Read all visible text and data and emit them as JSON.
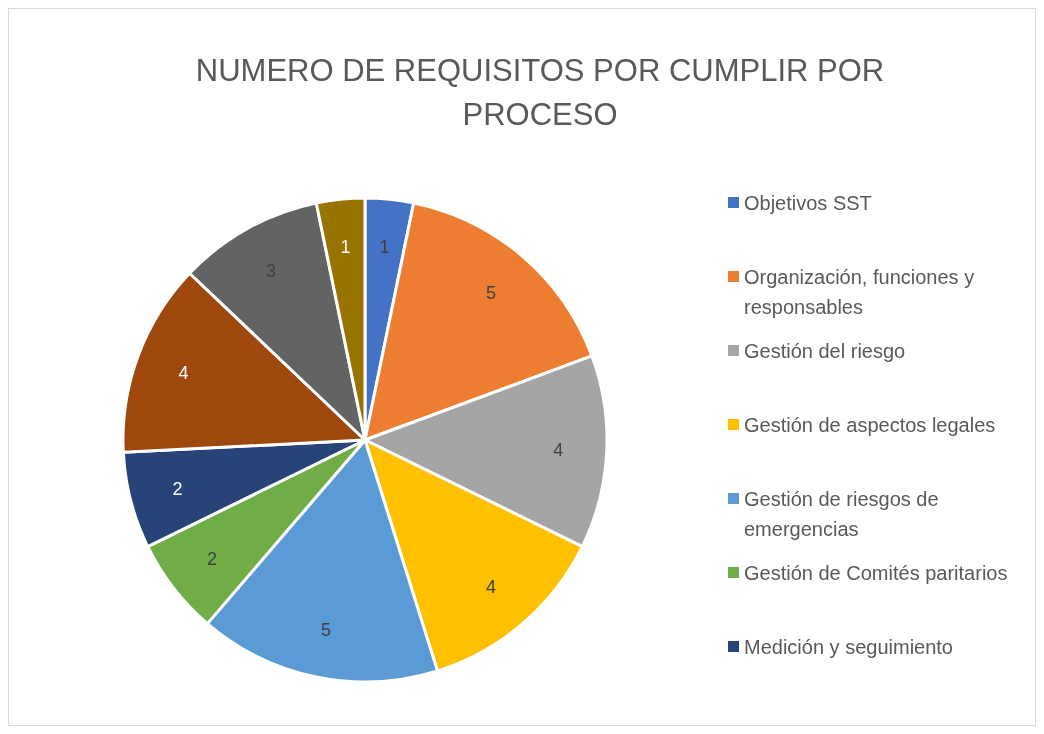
{
  "chart_data": {
    "type": "pie",
    "title": "NUMERO DE REQUISITOS POR CUMPLIR POR PROCESO",
    "categories": [
      "Objetivos SST",
      "Organización, funciones y responsables",
      "Gestión del riesgo",
      "Gestión de aspectos legales",
      "Gestión de riesgos de emergencias",
      "Gestión de Comités paritarios",
      "Medición y seguimiento",
      null,
      null,
      null
    ],
    "values": [
      1,
      5,
      4,
      4,
      5,
      2,
      2,
      4,
      3,
      1
    ],
    "colors": [
      "#4472c4",
      "#ed7d31",
      "#a5a5a5",
      "#ffc000",
      "#5b9bd5",
      "#70ad47",
      "#264478",
      "#9e480e",
      "#636363",
      "#997300"
    ],
    "data_labels": true,
    "legend": "right"
  }
}
